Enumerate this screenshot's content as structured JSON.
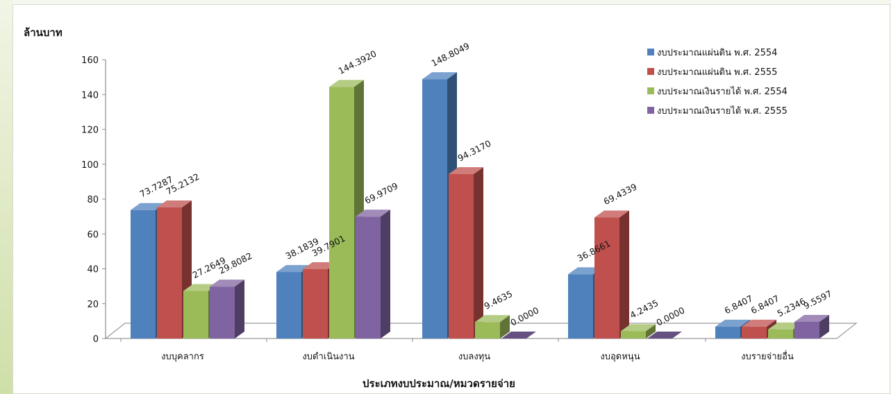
{
  "chart_data": {
    "type": "bar",
    "title": "",
    "ylabel": "ล้านบาท",
    "xlabel": "ประเภทงบประมาณ/หมวดรายจ่าย",
    "ylim": [
      0,
      160
    ],
    "yticks": [
      0,
      20,
      40,
      60,
      80,
      100,
      120,
      140,
      160
    ],
    "categories": [
      "งบบุคลากร",
      "งบดำเนินงาน",
      "งบลงทุน",
      "งบอุดหนุน",
      "งบรายจ่ายอื่น"
    ],
    "series": [
      {
        "name": "งบประมาณแผ่นดิน พ.ศ. 2554",
        "color": "#4f81bd",
        "values": [
          73.7287,
          38.1839,
          148.8049,
          36.8661,
          6.8407
        ],
        "labels": [
          "73.7287",
          "38.1839",
          "148.8049",
          "36.8661",
          "6.8407"
        ]
      },
      {
        "name": "งบประมาณแผ่นดิน พ.ศ. 2555",
        "color": "#c0504d",
        "values": [
          75.2132,
          39.7901,
          94.317,
          69.4339,
          6.8407
        ],
        "labels": [
          "75.2132",
          "39.7901",
          "94.3170",
          "69.4339",
          "6.8407"
        ]
      },
      {
        "name": "งบประมาณเงินรายได้ พ.ศ. 2554",
        "color": "#9bbb59",
        "values": [
          27.2649,
          144.392,
          9.4635,
          4.2435,
          5.2346
        ],
        "labels": [
          "27.2649",
          "144.3920",
          "9.4635",
          "4.2435",
          "5.2346"
        ]
      },
      {
        "name": "งบประมาณเงินรายได้ พ.ศ. 2555",
        "color": "#8064a2",
        "values": [
          29.8082,
          69.9709,
          0.0,
          0.0,
          9.5597
        ],
        "labels": [
          "29.8082",
          "69.9709",
          "0.0000",
          "0.0000",
          "9.5597"
        ]
      }
    ],
    "legend_position": "top-right",
    "grid": false,
    "style": "3d-clustered-column"
  }
}
